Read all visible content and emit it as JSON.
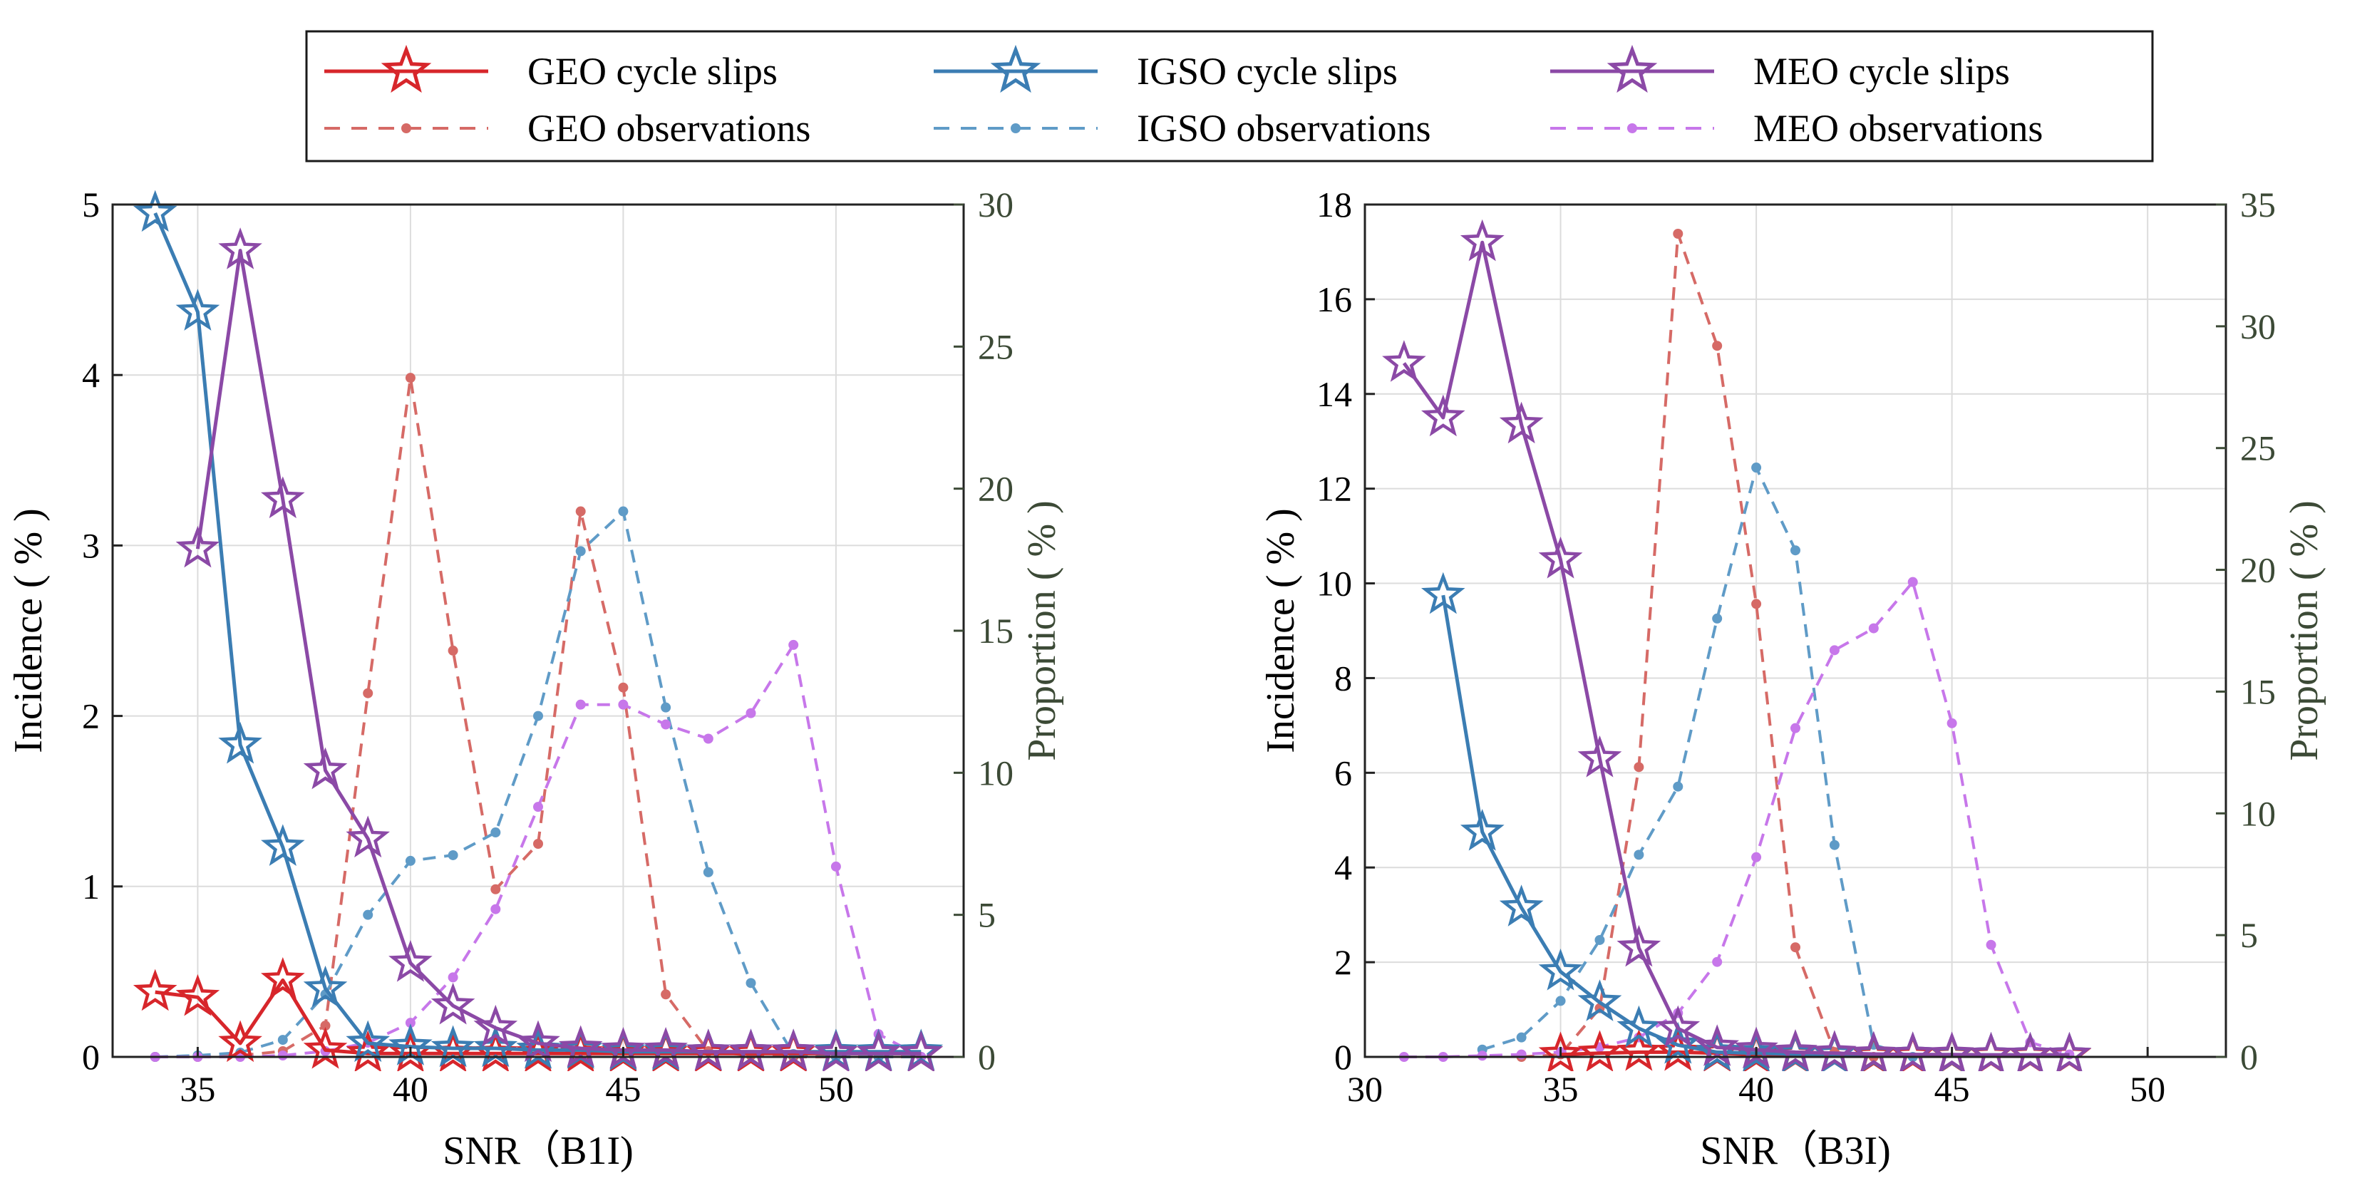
{
  "legend": {
    "entries": [
      {
        "key": "geo_slips",
        "label": "GEO cycle slips",
        "color": "#d7262b",
        "style": "solid",
        "marker": "star"
      },
      {
        "key": "igso_slips",
        "label": "IGSO cycle slips",
        "color": "#3b7db3",
        "style": "solid",
        "marker": "star"
      },
      {
        "key": "meo_slips",
        "label": "MEO cycle slips",
        "color": "#8b49a6",
        "style": "solid",
        "marker": "star"
      },
      {
        "key": "geo_obs",
        "label": "GEO observations",
        "color": "#d66a66",
        "style": "dashed",
        "marker": "dot"
      },
      {
        "key": "igso_obs",
        "label": "IGSO observations",
        "color": "#5f9bc7",
        "style": "dashed",
        "marker": "dot"
      },
      {
        "key": "meo_obs",
        "label": "MEO observations",
        "color": "#c777ea",
        "style": "dashed",
        "marker": "dot"
      }
    ]
  },
  "chart_data": [
    {
      "type": "line",
      "panel": "left",
      "xlabel": "SNR（B1I)",
      "ylabel": "Incidence ( % )",
      "y2label": "Proportion ( % )",
      "xlim": [
        33,
        53
      ],
      "ylim": [
        0,
        5
      ],
      "y2lim": [
        0,
        30
      ],
      "xticks": [
        35,
        40,
        45,
        50
      ],
      "yticks": [
        0,
        1,
        2,
        3,
        4,
        5
      ],
      "y2ticks": [
        0,
        5,
        10,
        15,
        20,
        25,
        30
      ],
      "grid": true,
      "series": [
        {
          "name": "GEO cycle slips",
          "axis": "left",
          "color": "#d7262b",
          "style": "solid",
          "marker": "star",
          "x": [
            34,
            35,
            36,
            37,
            38,
            39,
            40,
            41,
            42,
            43,
            44,
            45,
            46,
            47,
            48,
            49,
            50,
            51,
            52
          ],
          "y": [
            0.38,
            0.35,
            0.08,
            0.45,
            0.04,
            0.02,
            0.02,
            0.02,
            0.02,
            0.02,
            0.02,
            0.02,
            0.02,
            0.02,
            0.02,
            0.02,
            0.02,
            0.02,
            0.02
          ]
        },
        {
          "name": "IGSO cycle slips",
          "axis": "left",
          "color": "#3b7db3",
          "style": "solid",
          "marker": "star",
          "x": [
            34,
            35,
            36,
            37,
            38,
            39,
            40,
            41,
            42,
            43,
            44,
            45,
            46,
            47,
            48,
            49,
            50,
            51,
            52
          ],
          "y": [
            4.95,
            4.37,
            1.83,
            1.23,
            0.4,
            0.08,
            0.06,
            0.05,
            0.05,
            0.04,
            0.04,
            0.03,
            0.03,
            0.03,
            0.03,
            0.03,
            0.03,
            0.03,
            0.03
          ]
        },
        {
          "name": "MEO cycle slips",
          "axis": "left",
          "color": "#8b49a6",
          "style": "solid",
          "marker": "star",
          "x": [
            35,
            36,
            37,
            38,
            39,
            40,
            41,
            42,
            43,
            44,
            45,
            46,
            47,
            48,
            49,
            50,
            51,
            52
          ],
          "y": [
            2.98,
            4.73,
            3.27,
            1.68,
            1.28,
            0.55,
            0.3,
            0.17,
            0.08,
            0.05,
            0.04,
            0.04,
            0.03,
            0.03,
            0.03,
            0.02,
            0.02,
            0.02
          ]
        },
        {
          "name": "GEO observations",
          "axis": "right",
          "color": "#d66a66",
          "style": "dashed",
          "marker": "dot",
          "x": [
            34,
            35,
            36,
            37,
            38,
            39,
            40,
            41,
            42,
            43,
            44,
            45,
            46,
            47,
            48,
            49,
            50,
            51,
            52
          ],
          "y": [
            0.0,
            0.0,
            0.05,
            0.2,
            1.1,
            12.8,
            23.9,
            14.3,
            5.9,
            7.5,
            19.2,
            13.0,
            2.2,
            0.2,
            0.05,
            0.0,
            0.0,
            0.0,
            0.0
          ]
        },
        {
          "name": "IGSO observations",
          "axis": "right",
          "color": "#5f9bc7",
          "style": "dashed",
          "marker": "dot",
          "x": [
            34,
            35,
            36,
            37,
            38,
            39,
            40,
            41,
            42,
            43,
            44,
            45,
            46,
            47,
            48,
            49,
            50,
            51,
            52
          ],
          "y": [
            0.0,
            0.05,
            0.15,
            0.6,
            2.2,
            5.0,
            6.9,
            7.1,
            7.9,
            12.0,
            17.8,
            19.2,
            12.3,
            6.5,
            2.6,
            0.1,
            0.0,
            0.0,
            0.0
          ]
        },
        {
          "name": "MEO observations",
          "axis": "right",
          "color": "#c777ea",
          "style": "dashed",
          "marker": "dot",
          "x": [
            34,
            35,
            36,
            37,
            38,
            39,
            40,
            41,
            42,
            43,
            44,
            45,
            46,
            47,
            48,
            49,
            50,
            51,
            52
          ],
          "y": [
            0.0,
            0.0,
            0.0,
            0.05,
            0.2,
            0.5,
            1.2,
            2.8,
            5.2,
            8.8,
            12.4,
            12.4,
            11.7,
            11.2,
            12.1,
            14.5,
            6.7,
            0.8,
            0.0
          ]
        }
      ]
    },
    {
      "type": "line",
      "panel": "right",
      "xlabel": "SNR（B3I)",
      "ylabel": "Incidence ( % )",
      "y2label": "Proportion ( % )",
      "xlim": [
        30,
        52
      ],
      "ylim": [
        0,
        18
      ],
      "y2lim": [
        0,
        35
      ],
      "xticks": [
        30,
        35,
        40,
        45,
        50
      ],
      "yticks": [
        0,
        2,
        4,
        6,
        8,
        10,
        12,
        14,
        16,
        18
      ],
      "y2ticks": [
        0,
        5,
        10,
        15,
        20,
        25,
        30,
        35
      ],
      "grid": true,
      "series": [
        {
          "name": "GEO cycle slips",
          "axis": "left",
          "color": "#d7262b",
          "style": "solid",
          "marker": "star",
          "x": [
            35,
            36,
            37,
            38,
            39,
            40,
            41,
            42,
            43,
            44,
            45,
            46,
            47,
            48
          ],
          "y": [
            0.05,
            0.08,
            0.1,
            0.1,
            0.08,
            0.05,
            0.05,
            0.05,
            0.03,
            0.03,
            0.03,
            0.03,
            0.03,
            0.03
          ]
        },
        {
          "name": "IGSO cycle slips",
          "axis": "left",
          "color": "#3b7db3",
          "style": "solid",
          "marker": "star",
          "x": [
            32,
            33,
            34,
            35,
            36,
            37,
            38,
            39,
            40,
            41,
            42,
            43,
            44,
            45,
            46,
            47,
            48
          ],
          "y": [
            9.75,
            4.75,
            3.15,
            1.8,
            1.15,
            0.6,
            0.25,
            0.1,
            0.08,
            0.06,
            0.05,
            0.05,
            0.05,
            0.04,
            0.04,
            0.04,
            0.04
          ]
        },
        {
          "name": "MEO cycle slips",
          "axis": "left",
          "color": "#8b49a6",
          "style": "solid",
          "marker": "star",
          "x": [
            31,
            32,
            33,
            34,
            35,
            36,
            37,
            38,
            39,
            40,
            41,
            42,
            43,
            44,
            45,
            46,
            47,
            48
          ],
          "y": [
            14.65,
            13.5,
            17.2,
            13.35,
            10.5,
            6.3,
            2.3,
            0.6,
            0.2,
            0.15,
            0.1,
            0.08,
            0.06,
            0.05,
            0.05,
            0.04,
            0.04,
            0.04
          ]
        },
        {
          "name": "GEO observations",
          "axis": "right",
          "color": "#d66a66",
          "style": "dashed",
          "marker": "dot",
          "x": [
            34,
            35,
            36,
            37,
            38,
            39,
            40,
            41,
            42,
            43
          ],
          "y": [
            0.0,
            0.1,
            2.0,
            11.9,
            33.8,
            29.2,
            18.6,
            4.5,
            0.2,
            0.0
          ]
        },
        {
          "name": "IGSO observations",
          "axis": "right",
          "color": "#5f9bc7",
          "style": "dashed",
          "marker": "dot",
          "x": [
            33,
            34,
            35,
            36,
            37,
            38,
            39,
            40,
            41,
            42,
            43,
            44
          ],
          "y": [
            0.3,
            0.8,
            2.3,
            4.8,
            8.3,
            11.1,
            18.0,
            24.2,
            20.8,
            8.7,
            0.5,
            0.0
          ]
        },
        {
          "name": "MEO observations",
          "axis": "right",
          "color": "#c777ea",
          "style": "dashed",
          "marker": "dot",
          "x": [
            31,
            32,
            33,
            34,
            35,
            36,
            37,
            38,
            39,
            40,
            41,
            42,
            43,
            44,
            45,
            46,
            47,
            48
          ],
          "y": [
            0.0,
            0.0,
            0.05,
            0.1,
            0.2,
            0.4,
            0.8,
            1.8,
            3.9,
            8.2,
            13.5,
            16.7,
            17.6,
            19.5,
            13.7,
            4.6,
            0.6,
            0.1
          ]
        }
      ]
    }
  ]
}
